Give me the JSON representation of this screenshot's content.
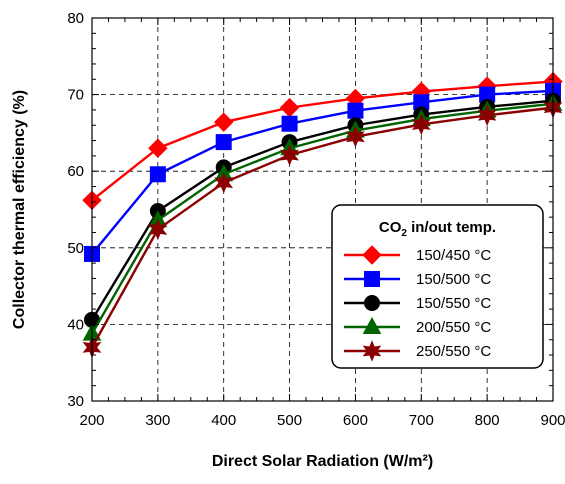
{
  "chart_data": {
    "type": "line",
    "title": "",
    "xlabel": "Direct Solar Radiation (W/m²)",
    "ylabel": "Collector thermal efficiency (%)",
    "xlim": [
      200,
      900
    ],
    "ylim": [
      30,
      80
    ],
    "x": [
      200,
      300,
      400,
      500,
      600,
      700,
      800,
      900
    ],
    "x_ticks": [
      "200",
      "300",
      "400",
      "500",
      "600",
      "700",
      "800",
      "900"
    ],
    "y_ticks": [
      "30",
      "40",
      "50",
      "60",
      "70",
      "80"
    ],
    "grid": true,
    "legend_placement": "bottom-right",
    "legend_title_main": "CO",
    "legend_title_sub": "2",
    "legend_title_rest": " in/out temp.",
    "series": [
      {
        "name": "150/450 °C",
        "color": "#ff0000",
        "marker": "diamond",
        "values": [
          56.2,
          63.0,
          66.4,
          68.3,
          69.5,
          70.4,
          71.1,
          71.7
        ]
      },
      {
        "name": "150/500 °C",
        "color": "#0000ff",
        "marker": "square",
        "values": [
          49.2,
          59.6,
          63.8,
          66.2,
          67.9,
          69.0,
          70.0,
          70.5
        ]
      },
      {
        "name": "150/550 °C",
        "color": "#000000",
        "marker": "circle",
        "values": [
          40.6,
          54.8,
          60.5,
          63.8,
          66.0,
          67.4,
          68.4,
          69.2
        ]
      },
      {
        "name": "200/550 °C",
        "color": "#006400",
        "marker": "triangle",
        "values": [
          38.8,
          53.6,
          59.6,
          63.0,
          65.3,
          66.8,
          67.9,
          68.8
        ]
      },
      {
        "name": "250/550 °C",
        "color": "#8b0000",
        "marker": "star",
        "values": [
          37.0,
          52.4,
          58.5,
          62.1,
          64.5,
          66.1,
          67.3,
          68.3
        ]
      }
    ]
  }
}
